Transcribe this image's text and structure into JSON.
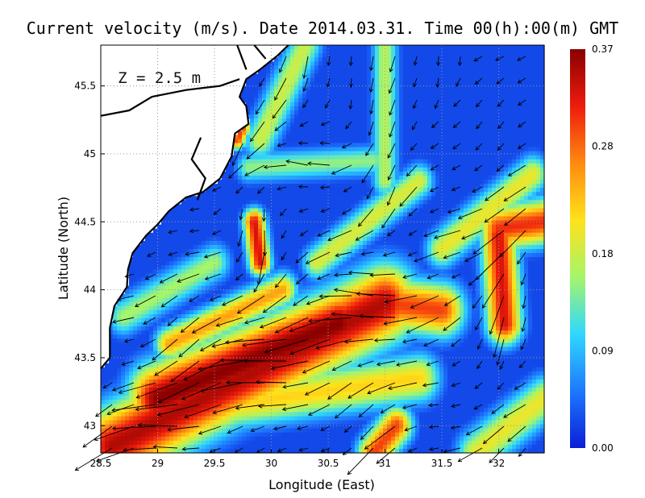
{
  "chart_data": {
    "type": "heatmap",
    "title": "Current velocity (m/s). Date 2014.03.31. Time 00(h):00(m) GMT",
    "xlabel": "Longitude (East)",
    "ylabel": "Latitude (North)",
    "annotation": "Z = 2.5 m",
    "xlim": [
      28.5,
      32.4
    ],
    "ylim": [
      42.8,
      45.8
    ],
    "xticks": [
      {
        "value": 28.5,
        "label": "28.5"
      },
      {
        "value": 29,
        "label": "29"
      },
      {
        "value": 29.5,
        "label": "29.5"
      },
      {
        "value": 30,
        "label": "30"
      },
      {
        "value": 30.5,
        "label": "30.5"
      },
      {
        "value": 31,
        "label": "31"
      },
      {
        "value": 31.5,
        "label": "31.5"
      },
      {
        "value": 32,
        "label": "32"
      }
    ],
    "yticks": [
      {
        "value": 43,
        "label": "43"
      },
      {
        "value": 43.5,
        "label": "43.5"
      },
      {
        "value": 44,
        "label": "44"
      },
      {
        "value": 44.5,
        "label": "44.5"
      },
      {
        "value": 45,
        "label": "45"
      },
      {
        "value": 45.5,
        "label": "45.5"
      }
    ],
    "grid": true,
    "colorbar": {
      "min": 0.0,
      "max": 0.37,
      "ticks": [
        {
          "value": 0.0,
          "label": "0.00"
        },
        {
          "value": 0.09,
          "label": "0.09"
        },
        {
          "value": 0.18,
          "label": "0.18"
        },
        {
          "value": 0.28,
          "label": "0.28"
        },
        {
          "value": 0.37,
          "label": "0.37"
        }
      ],
      "colormap": [
        "#0a1fd6",
        "#1e78ff",
        "#2fd8ff",
        "#a6f56a",
        "#ffe21a",
        "#ff8a10",
        "#ee1c0c",
        "#8a0000"
      ]
    },
    "coastline": [
      [
        28.5,
        43.42
      ],
      [
        28.58,
        43.5
      ],
      [
        28.58,
        43.72
      ],
      [
        28.62,
        43.88
      ],
      [
        28.73,
        44.02
      ],
      [
        28.74,
        44.15
      ],
      [
        28.78,
        44.27
      ],
      [
        28.9,
        44.4
      ],
      [
        29.0,
        44.48
      ],
      [
        29.1,
        44.58
      ],
      [
        29.25,
        44.68
      ],
      [
        29.4,
        44.72
      ],
      [
        29.55,
        44.82
      ],
      [
        29.65,
        44.98
      ],
      [
        29.68,
        45.15
      ],
      [
        29.8,
        45.22
      ],
      [
        29.78,
        45.35
      ],
      [
        29.72,
        45.42
      ],
      [
        29.78,
        45.55
      ],
      [
        29.9,
        45.62
      ],
      [
        30.05,
        45.72
      ],
      [
        30.15,
        45.8
      ]
    ],
    "land_lines": [
      [
        [
          28.5,
          45.28
        ],
        [
          28.75,
          45.32
        ],
        [
          28.95,
          45.42
        ],
        [
          29.25,
          45.47
        ],
        [
          29.55,
          45.5
        ],
        [
          29.72,
          45.55
        ]
      ],
      [
        [
          29.38,
          45.12
        ],
        [
          29.3,
          44.96
        ],
        [
          29.42,
          44.82
        ],
        [
          29.35,
          44.66
        ]
      ],
      [
        [
          29.78,
          45.62
        ],
        [
          29.7,
          45.8
        ]
      ],
      [
        [
          29.95,
          45.7
        ],
        [
          29.85,
          45.8
        ]
      ]
    ],
    "speed_features": [
      {
        "x0": 28.6,
        "y0": 42.85,
        "x1": 31.0,
        "y1": 43.9,
        "width": 0.2,
        "peak": 0.35
      },
      {
        "x0": 29.0,
        "y0": 43.2,
        "x1": 30.6,
        "y1": 43.75,
        "width": 0.18,
        "peak": 0.37
      },
      {
        "x0": 31.0,
        "y0": 43.9,
        "x1": 31.5,
        "y1": 43.85,
        "width": 0.14,
        "peak": 0.3
      },
      {
        "x0": 32.05,
        "y0": 43.75,
        "x1": 32.0,
        "y1": 44.4,
        "width": 0.11,
        "peak": 0.33
      },
      {
        "x0": 32.0,
        "y0": 44.45,
        "x1": 32.4,
        "y1": 44.5,
        "width": 0.12,
        "peak": 0.31
      },
      {
        "x0": 29.9,
        "y0": 44.2,
        "x1": 29.85,
        "y1": 44.5,
        "width": 0.07,
        "peak": 0.33
      },
      {
        "x0": 29.1,
        "y0": 43.6,
        "x1": 30.1,
        "y1": 44.0,
        "width": 0.09,
        "peak": 0.25
      },
      {
        "x0": 29.2,
        "y0": 43.1,
        "x1": 31.3,
        "y1": 43.35,
        "width": 0.13,
        "peak": 0.22
      },
      {
        "x0": 30.9,
        "y0": 42.8,
        "x1": 31.1,
        "y1": 43.0,
        "width": 0.1,
        "peak": 0.3
      },
      {
        "x0": 31.8,
        "y0": 42.8,
        "x1": 32.4,
        "y1": 43.2,
        "width": 0.12,
        "peak": 0.2
      },
      {
        "x0": 30.4,
        "y0": 44.2,
        "x1": 31.3,
        "y1": 44.8,
        "width": 0.09,
        "peak": 0.19
      },
      {
        "x0": 29.9,
        "y0": 45.1,
        "x1": 30.3,
        "y1": 45.8,
        "width": 0.1,
        "peak": 0.18
      },
      {
        "x0": 31.0,
        "y0": 44.8,
        "x1": 31.0,
        "y1": 45.8,
        "width": 0.08,
        "peak": 0.17
      },
      {
        "x0": 31.5,
        "y0": 44.3,
        "x1": 32.3,
        "y1": 44.85,
        "width": 0.1,
        "peak": 0.2
      },
      {
        "x0": 29.8,
        "y0": 44.9,
        "x1": 30.9,
        "y1": 44.95,
        "width": 0.08,
        "peak": 0.15
      },
      {
        "x0": 28.7,
        "y0": 43.8,
        "x1": 29.5,
        "y1": 44.2,
        "width": 0.1,
        "peak": 0.16
      },
      {
        "x0": 29.7,
        "y0": 45.1,
        "x1": 29.75,
        "y1": 45.2,
        "width": 0.05,
        "peak": 0.3
      }
    ]
  }
}
